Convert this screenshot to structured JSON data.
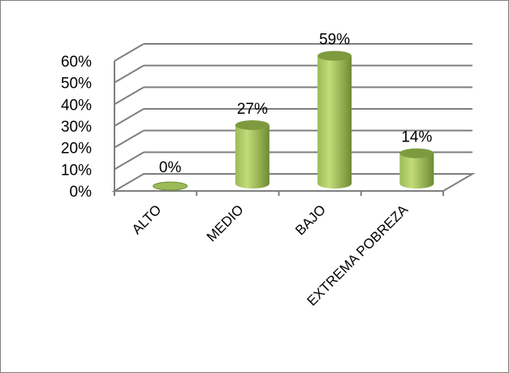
{
  "chart_data": {
    "type": "bar",
    "style": "3d-cylinder",
    "categories": [
      "ALTO",
      "MEDIO",
      "BAJO",
      "EXTREMA POBREZA"
    ],
    "values": [
      0,
      27,
      59,
      14
    ],
    "data_labels": [
      "0%",
      "27%",
      "59%",
      "14%"
    ],
    "ylim": [
      0,
      60
    ],
    "yticks": [
      0,
      10,
      20,
      30,
      40,
      50,
      60
    ],
    "ytick_labels": [
      "0%",
      "10%",
      "20%",
      "30%",
      "40%",
      "50%",
      "60%"
    ],
    "grid": true,
    "legend": "none",
    "title": "",
    "xlabel": "",
    "ylabel": "",
    "colors": {
      "bar_light": "#c3dc79",
      "bar_mid": "#9bbb59",
      "bar_dark": "#6e8a33",
      "bar_top": "#7d9b3e",
      "grid": "#7f7f7f"
    }
  }
}
